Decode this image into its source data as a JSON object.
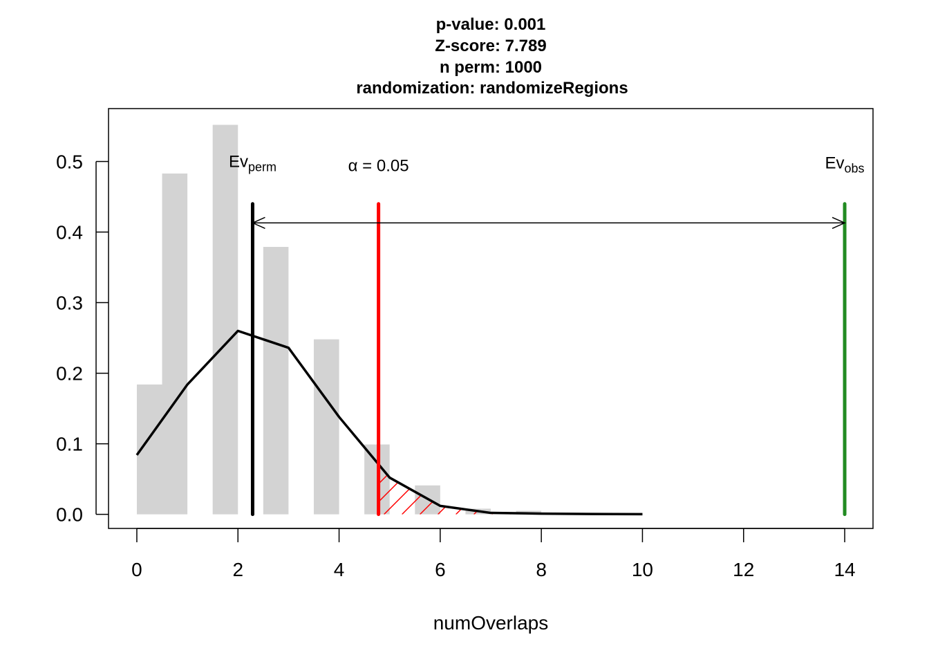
{
  "chart_data": {
    "type": "bar",
    "title_lines": [
      "p-value:  0.001",
      "Z-score:  7.789",
      "n perm:  1000",
      "randomization:  randomizeRegions"
    ],
    "xlabel": "numOverlaps",
    "ylabel": "",
    "xlim": [
      -0.56,
      14.56
    ],
    "ylim": [
      -0.02,
      0.575
    ],
    "x_ticks": [
      0,
      2,
      4,
      6,
      8,
      10,
      12,
      14
    ],
    "x_tick_labels": [
      "0",
      "2",
      "4",
      "6",
      "8",
      "10",
      "12",
      "14"
    ],
    "y_ticks": [
      0.0,
      0.1,
      0.2,
      0.3,
      0.4,
      0.5
    ],
    "y_tick_labels": [
      "0.0",
      "0.1",
      "0.2",
      "0.3",
      "0.4",
      "0.5"
    ],
    "histogram": {
      "bin_edges": [
        0,
        0.5,
        1,
        1.5,
        2,
        2.5,
        3,
        3.5,
        4,
        4.5,
        5,
        5.5,
        6,
        6.5,
        7,
        7.5,
        8
      ],
      "density": [
        0.184,
        0.483,
        0,
        0.552,
        0,
        0.379,
        0,
        0.248,
        0,
        0.099,
        0,
        0.041,
        0,
        0.008,
        0,
        0.005
      ],
      "color": "#d3d3d3"
    },
    "density_line": {
      "x": [
        0,
        1,
        2,
        3,
        4,
        5,
        6,
        7,
        8,
        9,
        10
      ],
      "y": [
        0.084,
        0.184,
        0.26,
        0.236,
        0.138,
        0.052,
        0.012,
        0.002,
        0.001,
        0.0005,
        0.0002
      ],
      "color": "#000000"
    },
    "shaded_region": {
      "from_x": 4.78,
      "to_x": 10,
      "color": "#ff0000"
    },
    "vlines": [
      {
        "key": "ev-perm",
        "x": 2.29,
        "y_top": 0.44,
        "color": "#000000"
      },
      {
        "key": "alpha",
        "x": 4.78,
        "y_top": 0.44,
        "color": "#ff0000"
      },
      {
        "key": "ev-obs",
        "x": 14,
        "y_top": 0.44,
        "color": "#228b22"
      }
    ],
    "arrow": {
      "x_from": 2.29,
      "x_to": 14,
      "y": 0.413,
      "color": "#000000"
    },
    "annotations": {
      "ev_perm": {
        "main": "Ev",
        "sub": "perm",
        "x": 2.29,
        "y": 0.5
      },
      "alpha": {
        "symbol": "α",
        "text": " = 0.05",
        "x": 4.78,
        "y": 0.5
      },
      "ev_obs": {
        "main": "Ev",
        "sub": "obs",
        "x": 14,
        "y": 0.5
      }
    }
  }
}
